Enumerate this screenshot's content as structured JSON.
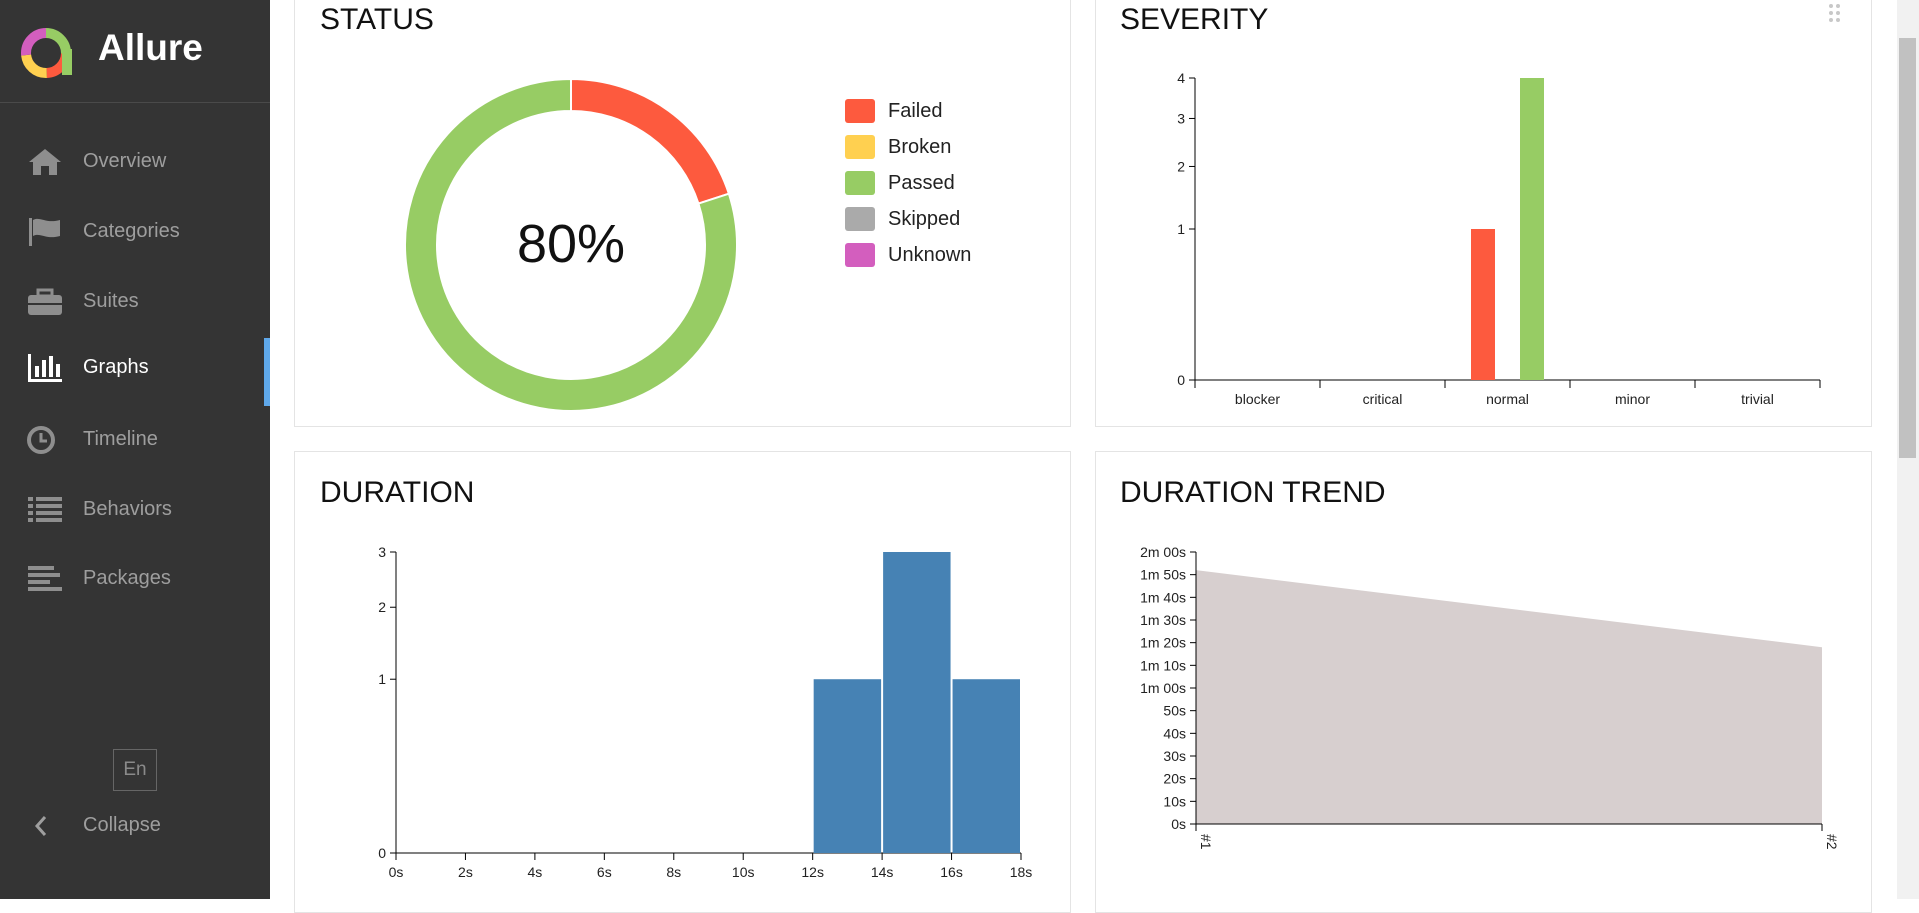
{
  "app": {
    "name": "Allure"
  },
  "colors": {
    "sidebar": "#343434",
    "accent": "#5fa8ea",
    "failed": "#fd5a3e",
    "broken": "#ffd050",
    "passed": "#97cc64",
    "skipped": "#aaaaaa",
    "unknown": "#d35ebe",
    "bar": "#4682b4",
    "area": "#d7cfcf"
  },
  "sidebar": {
    "items": [
      {
        "label": "Overview",
        "icon": "home-icon"
      },
      {
        "label": "Categories",
        "icon": "flag-icon"
      },
      {
        "label": "Suites",
        "icon": "briefcase-icon"
      },
      {
        "label": "Graphs",
        "icon": "bar-chart-icon",
        "active": true
      },
      {
        "label": "Timeline",
        "icon": "clock-icon"
      },
      {
        "label": "Behaviors",
        "icon": "list-icon"
      },
      {
        "label": "Packages",
        "icon": "align-left-icon"
      }
    ],
    "language": "En",
    "collapse_label": "Collapse"
  },
  "panels": {
    "status": {
      "title": "STATUS",
      "percent": "80%"
    },
    "severity": {
      "title": "SEVERITY"
    },
    "duration": {
      "title": "DURATION"
    },
    "trend": {
      "title": "DURATION TREND"
    }
  },
  "chart_data": [
    {
      "type": "pie",
      "title": "STATUS",
      "center_label": "80%",
      "categories": [
        "Failed",
        "Broken",
        "Passed",
        "Skipped",
        "Unknown"
      ],
      "values": [
        1,
        0,
        4,
        0,
        0
      ]
    },
    {
      "type": "bar",
      "title": "SEVERITY",
      "categories": [
        "blocker",
        "critical",
        "normal",
        "minor",
        "trivial"
      ],
      "series": [
        {
          "name": "Failed",
          "values": [
            0,
            0,
            1,
            0,
            0
          ]
        },
        {
          "name": "Passed",
          "values": [
            0,
            0,
            4,
            0,
            0
          ]
        }
      ],
      "yticks": [
        0,
        1,
        2,
        3,
        4
      ],
      "ylim": [
        0,
        4
      ]
    },
    {
      "type": "bar",
      "title": "DURATION",
      "xticks": [
        "0s",
        "2s",
        "4s",
        "6s",
        "8s",
        "10s",
        "12s",
        "14s",
        "16s",
        "18s"
      ],
      "bins": [
        {
          "from": 12,
          "to": 14,
          "value": 1
        },
        {
          "from": 14,
          "to": 16,
          "value": 3
        },
        {
          "from": 16,
          "to": 18,
          "value": 1
        }
      ],
      "yticks": [
        0,
        1,
        2,
        3
      ],
      "ylim": [
        0,
        3
      ]
    },
    {
      "type": "area",
      "title": "DURATION TREND",
      "x": [
        "#1",
        "#2"
      ],
      "values_seconds": [
        112,
        78
      ],
      "yticks": [
        "0s",
        "10s",
        "20s",
        "30s",
        "40s",
        "50s",
        "1m 00s",
        "1m 10s",
        "1m 20s",
        "1m 30s",
        "1m 40s",
        "1m 50s",
        "2m 00s"
      ],
      "ylim": [
        0,
        120
      ]
    }
  ]
}
